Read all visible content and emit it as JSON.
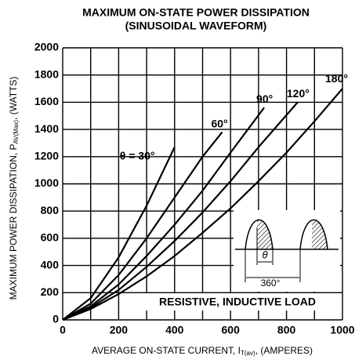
{
  "chart_data": {
    "type": "line",
    "title": "MAXIMUM ON-STATE POWER DISSIPATION",
    "subtitle": "(SINUSOIDAL WAVEFORM)",
    "xlabel": "AVERAGE ON-STATE CURRENT, I",
    "xlabel_sub": "T(av)",
    "xlabel_end": ", (AMPERES)",
    "ylabel": "MAXIMUM POWER DISSIPATION, P",
    "ylabel_sub": "AV(Max)",
    "ylabel_end": ", (WATTS)",
    "xlim": [
      0,
      1000
    ],
    "xticks": [
      0,
      200,
      400,
      600,
      800,
      1000
    ],
    "xminor_ticks": [
      100,
      300,
      500,
      700,
      900
    ],
    "ylim": [
      0,
      2000
    ],
    "yticks": [
      0,
      200,
      400,
      600,
      800,
      1000,
      1200,
      1400,
      1600,
      1800,
      2000
    ],
    "grid": true,
    "series": [
      {
        "name": "θ = 30°",
        "color": "#000000",
        "x": [
          0,
          100,
          200,
          300,
          400
        ],
        "values": [
          0,
          160,
          460,
          840,
          1270
        ]
      },
      {
        "name": "60°",
        "color": "#000000",
        "x": [
          0,
          100,
          200,
          300,
          400,
          500,
          570
        ],
        "values": [
          0,
          120,
          330,
          600,
          900,
          1200,
          1380
        ]
      },
      {
        "name": "90°",
        "color": "#000000",
        "x": [
          0,
          100,
          200,
          300,
          400,
          500,
          600,
          720
        ],
        "values": [
          0,
          100,
          260,
          470,
          700,
          950,
          1230,
          1560
        ]
      },
      {
        "name": "120°",
        "color": "#000000",
        "x": [
          0,
          100,
          200,
          300,
          400,
          500,
          600,
          700,
          840
        ],
        "values": [
          0,
          90,
          220,
          390,
          580,
          790,
          1020,
          1270,
          1600
        ]
      },
      {
        "name": "180°",
        "color": "#000000",
        "x": [
          0,
          100,
          200,
          300,
          400,
          500,
          600,
          700,
          800,
          900,
          1000
        ],
        "values": [
          0,
          80,
          190,
          320,
          470,
          640,
          820,
          1020,
          1230,
          1460,
          1700
        ]
      }
    ],
    "annotations": [
      "RESISTIVE, INDUCTIVE LOAD",
      "θ",
      "360°"
    ]
  }
}
